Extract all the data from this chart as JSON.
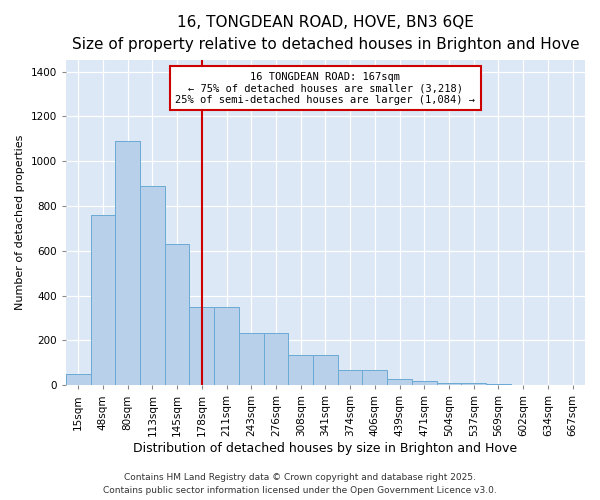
{
  "title": "16, TONGDEAN ROAD, HOVE, BN3 6QE",
  "subtitle": "Size of property relative to detached houses in Brighton and Hove",
  "xlabel": "Distribution of detached houses by size in Brighton and Hove",
  "ylabel": "Number of detached properties",
  "categories": [
    "15sqm",
    "48sqm",
    "80sqm",
    "113sqm",
    "145sqm",
    "178sqm",
    "211sqm",
    "243sqm",
    "276sqm",
    "308sqm",
    "341sqm",
    "374sqm",
    "406sqm",
    "439sqm",
    "471sqm",
    "504sqm",
    "537sqm",
    "569sqm",
    "602sqm",
    "634sqm",
    "667sqm"
  ],
  "values": [
    50,
    760,
    1090,
    890,
    630,
    350,
    350,
    235,
    235,
    135,
    135,
    70,
    70,
    30,
    20,
    12,
    8,
    5,
    2,
    2,
    3
  ],
  "bar_color": "#b8d0ea",
  "bar_edge_color": "#6aaad4",
  "bg_color": "#dce8f5",
  "vline_color": "#cc0000",
  "vline_x_index": 5,
  "annotation_text": "16 TONGDEAN ROAD: 167sqm\n← 75% of detached houses are smaller (3,218)\n25% of semi-detached houses are larger (1,084) →",
  "annotation_box_color": "#cc0000",
  "footer_line1": "Contains HM Land Registry data © Crown copyright and database right 2025.",
  "footer_line2": "Contains public sector information licensed under the Open Government Licence v3.0.",
  "ylim": [
    0,
    1450
  ],
  "yticks": [
    0,
    200,
    400,
    600,
    800,
    1000,
    1200,
    1400
  ],
  "title_fontsize": 11,
  "subtitle_fontsize": 9,
  "ylabel_fontsize": 8,
  "xlabel_fontsize": 9,
  "tick_fontsize": 7.5,
  "footer_fontsize": 6.5,
  "annotation_fontsize": 7.5
}
